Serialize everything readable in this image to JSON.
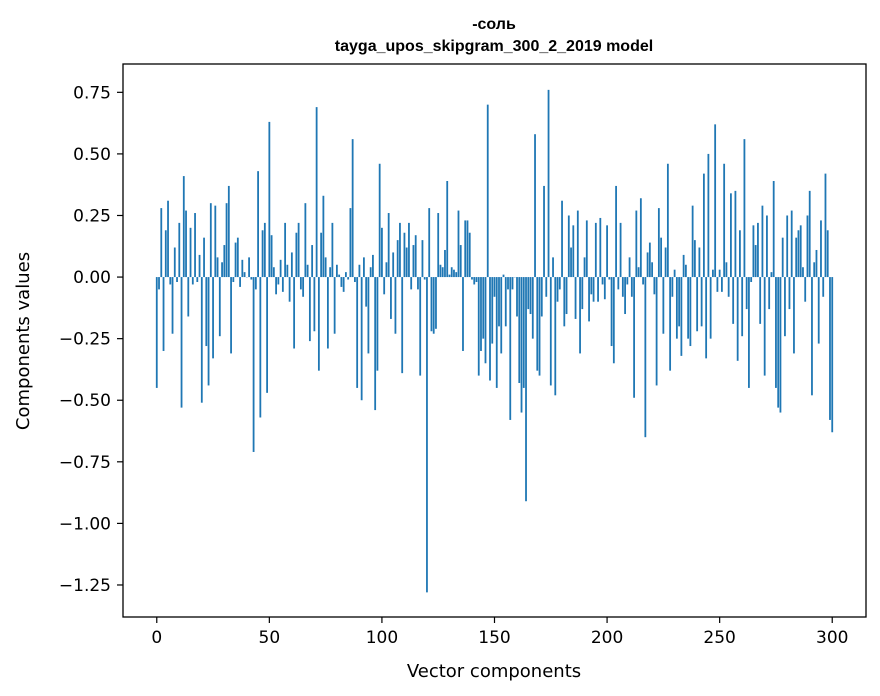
{
  "chart_data": {
    "type": "bar",
    "title_line1": "-соль",
    "title_line2": "tayga_upos_skipgram_300_2_2019 model",
    "xlabel": "Vector components",
    "ylabel": "Components values",
    "xlim": [
      -15,
      315
    ],
    "ylim": [
      -1.38,
      0.865
    ],
    "x_ticks": [
      0,
      50,
      100,
      150,
      200,
      250,
      300
    ],
    "x_tick_labels": [
      "0",
      "50",
      "100",
      "150",
      "200",
      "250",
      "300"
    ],
    "y_ticks": [
      0.75,
      0.5,
      0.25,
      0.0,
      -0.25,
      -0.5,
      -0.75,
      -1.0,
      -1.25
    ],
    "y_tick_labels": [
      "0.75",
      "0.50",
      "0.25",
      "0.00",
      "−0.25",
      "−0.50",
      "−0.75",
      "−1.00",
      "−1.25"
    ],
    "bar_color": "#1f77b4",
    "values": [
      -0.45,
      -0.05,
      0.28,
      -0.3,
      0.19,
      0.31,
      -0.03,
      -0.23,
      0.12,
      -0.02,
      0.22,
      -0.53,
      0.41,
      0.27,
      -0.16,
      0.2,
      -0.03,
      0.26,
      -0.02,
      0.09,
      -0.51,
      0.16,
      -0.28,
      -0.44,
      0.3,
      -0.33,
      0.29,
      0.08,
      -0.24,
      0.06,
      0.13,
      0.3,
      0.37,
      -0.31,
      -0.02,
      0.14,
      0.16,
      -0.04,
      0.07,
      0.02,
      0.0,
      0.08,
      -0.01,
      -0.71,
      -0.05,
      0.43,
      -0.57,
      0.19,
      0.22,
      -0.47,
      0.63,
      0.17,
      0.04,
      -0.07,
      -0.03,
      0.07,
      -0.06,
      0.22,
      0.05,
      -0.1,
      0.1,
      -0.29,
      0.18,
      0.22,
      -0.05,
      -0.08,
      0.3,
      0.05,
      -0.26,
      0.13,
      -0.22,
      0.69,
      -0.38,
      0.18,
      0.33,
      0.08,
      -0.29,
      0.04,
      0.22,
      -0.23,
      0.05,
      0.01,
      -0.04,
      -0.06,
      0.02,
      -0.01,
      0.28,
      0.56,
      -0.02,
      -0.45,
      0.05,
      -0.5,
      0.08,
      -0.12,
      -0.31,
      0.04,
      0.09,
      -0.54,
      -0.38,
      0.46,
      0.2,
      -0.07,
      0.06,
      0.26,
      -0.17,
      0.1,
      -0.23,
      0.15,
      0.22,
      -0.39,
      0.18,
      0.12,
      0.22,
      -0.05,
      0.13,
      0.17,
      -0.05,
      -0.4,
      0.15,
      -0.01,
      -1.28,
      0.28,
      -0.22,
      -0.23,
      -0.21,
      0.26,
      0.05,
      0.04,
      0.11,
      0.39,
      0.01,
      0.04,
      0.03,
      0.02,
      0.27,
      0.13,
      -0.3,
      0.23,
      0.23,
      0.18,
      -0.01,
      -0.03,
      -0.02,
      -0.4,
      -0.3,
      -0.25,
      -0.35,
      0.7,
      -0.42,
      -0.27,
      -0.08,
      -0.45,
      -0.2,
      -0.31,
      0.01,
      -0.2,
      -0.05,
      -0.58,
      -0.05,
      0.0,
      -0.16,
      -0.43,
      -0.55,
      -0.45,
      -0.91,
      -0.13,
      -0.15,
      -0.25,
      0.58,
      -0.38,
      -0.4,
      -0.16,
      0.37,
      -0.08,
      0.76,
      -0.44,
      0.08,
      -0.48,
      -0.1,
      -0.05,
      0.31,
      -0.2,
      -0.15,
      0.25,
      0.12,
      0.21,
      -0.17,
      0.27,
      -0.31,
      -0.13,
      0.08,
      0.23,
      -0.18,
      -0.07,
      -0.1,
      0.22,
      -0.1,
      0.24,
      -0.03,
      -0.09,
      0.21,
      -0.01,
      -0.28,
      -0.35,
      0.37,
      -0.05,
      0.22,
      -0.08,
      -0.15,
      -0.03,
      0.08,
      -0.08,
      -0.49,
      0.27,
      0.04,
      0.32,
      -0.03,
      -0.65,
      0.1,
      0.14,
      0.06,
      -0.07,
      -0.44,
      0.28,
      0.16,
      -0.23,
      0.12,
      0.46,
      -0.38,
      -0.08,
      0.03,
      -0.25,
      -0.2,
      -0.32,
      0.09,
      0.05,
      -0.25,
      -0.28,
      0.29,
      0.15,
      -0.22,
      0.12,
      -0.2,
      0.42,
      -0.33,
      0.5,
      -0.25,
      0.03,
      0.62,
      -0.06,
      0.03,
      -0.06,
      0.46,
      0.06,
      -0.08,
      0.34,
      -0.19,
      0.35,
      -0.34,
      0.19,
      -0.24,
      0.56,
      -0.13,
      -0.45,
      -0.02,
      0.21,
      0.13,
      0.22,
      -0.19,
      0.29,
      -0.4,
      0.25,
      -0.13,
      0.02,
      0.39,
      -0.45,
      -0.53,
      -0.55,
      0.16,
      -0.24,
      0.25,
      -0.13,
      0.27,
      -0.31,
      0.16,
      0.19,
      0.21,
      0.04,
      -0.1,
      0.25,
      0.35,
      -0.48,
      0.06,
      0.11,
      -0.27,
      0.23,
      -0.08,
      0.42,
      0.19,
      -0.58,
      -0.63
    ]
  }
}
